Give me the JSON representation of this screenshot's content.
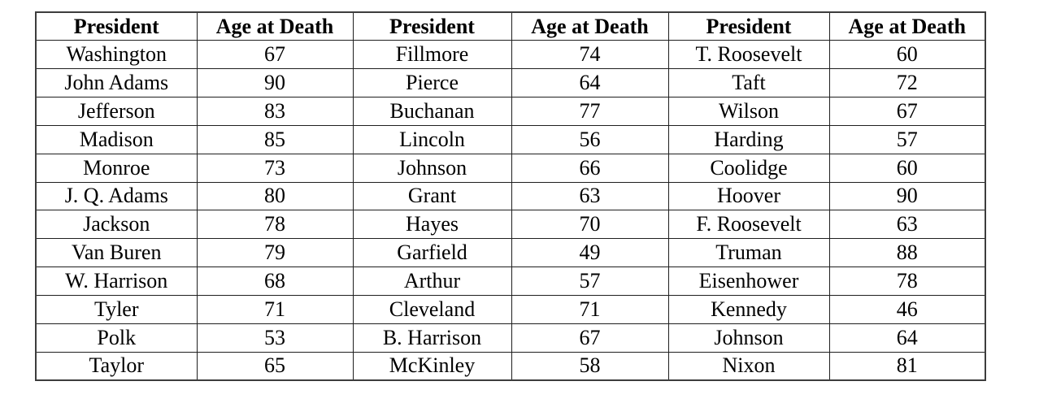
{
  "table": {
    "columns": [
      "President",
      "Age at Death",
      "President",
      "Age at Death",
      "President",
      "Age at Death"
    ],
    "rows": [
      [
        "Washington",
        "67",
        "Fillmore",
        "74",
        "T. Roosevelt",
        "60"
      ],
      [
        "John Adams",
        "90",
        "Pierce",
        "64",
        "Taft",
        "72"
      ],
      [
        "Jefferson",
        "83",
        "Buchanan",
        "77",
        "Wilson",
        "67"
      ],
      [
        "Madison",
        "85",
        "Lincoln",
        "56",
        "Harding",
        "57"
      ],
      [
        "Monroe",
        "73",
        "Johnson",
        "66",
        "Coolidge",
        "60"
      ],
      [
        "J. Q. Adams",
        "80",
        "Grant",
        "63",
        "Hoover",
        "90"
      ],
      [
        "Jackson",
        "78",
        "Hayes",
        "70",
        "F. Roosevelt",
        "63"
      ],
      [
        "Van Buren",
        "79",
        "Garfield",
        "49",
        "Truman",
        "88"
      ],
      [
        "W. Harrison",
        "68",
        "Arthur",
        "57",
        "Eisenhower",
        "78"
      ],
      [
        "Tyler",
        "71",
        "Cleveland",
        "71",
        "Kennedy",
        "46"
      ],
      [
        "Polk",
        "53",
        "B. Harrison",
        "67",
        "Johnson",
        "64"
      ],
      [
        "Taylor",
        "65",
        "McKinley",
        "58",
        "Nixon",
        "81"
      ]
    ]
  }
}
